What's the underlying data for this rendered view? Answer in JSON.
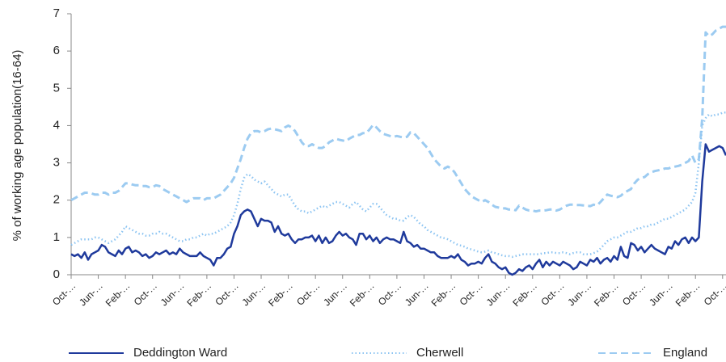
{
  "chart_data": {
    "type": "line",
    "y_label": "% of working age population(16-64)",
    "categories": [
      "Oct-…",
      null,
      null,
      null,
      null,
      null,
      null,
      null,
      "Jun-…",
      null,
      null,
      null,
      null,
      null,
      null,
      null,
      "Feb-…",
      null,
      null,
      null,
      null,
      null,
      null,
      null,
      "Oct-…",
      null,
      null,
      null,
      null,
      null,
      null,
      null,
      "Jun-…",
      null,
      null,
      null,
      null,
      null,
      null,
      null,
      "Feb-…",
      null,
      null,
      null,
      null,
      null,
      null,
      null,
      "Oct-…",
      null,
      null,
      null,
      null,
      null,
      null,
      null,
      "Jun-…",
      null,
      null,
      null,
      null,
      null,
      null,
      null,
      "Feb-…",
      null,
      null,
      null,
      null,
      null,
      null,
      null,
      "Oct-…",
      null,
      null,
      null,
      null,
      null,
      null,
      null,
      "Jun-…",
      null,
      null,
      null,
      null,
      null,
      null,
      null,
      "Feb-…",
      null,
      null,
      null,
      null,
      null,
      null,
      null,
      "Oct-…",
      null,
      null,
      null,
      null,
      null,
      null,
      null,
      "Jun-…",
      null,
      null,
      null,
      null,
      null,
      null,
      null,
      "Feb-…",
      null,
      null,
      null,
      null,
      null,
      null,
      null,
      "Oct-…",
      null,
      null,
      null,
      null,
      null,
      null,
      null,
      "Jun-…",
      null,
      null,
      null,
      null,
      null,
      null,
      null,
      "Feb-…",
      null,
      null,
      null,
      null,
      null,
      null,
      null,
      "Oct-…",
      null,
      null,
      null,
      null,
      null,
      null,
      null,
      "Jun-…",
      null,
      null,
      null,
      null,
      null,
      null,
      null,
      "Feb-…",
      null,
      null,
      null,
      null,
      null,
      null,
      null,
      "Oct-…",
      null,
      null,
      null,
      null,
      null,
      null,
      null,
      "Jun-…",
      null,
      null,
      null,
      null,
      null,
      null,
      null,
      "Feb-…",
      null,
      null,
      null,
      null,
      null,
      null,
      null,
      "Oct-…",
      null
    ],
    "series": [
      {
        "name": "Deddington Ward",
        "color": "#1f3a9c",
        "dash": "solid",
        "values": [
          0.55,
          0.5,
          0.55,
          0.45,
          0.6,
          0.4,
          0.55,
          0.6,
          0.65,
          0.8,
          0.75,
          0.6,
          0.55,
          0.5,
          0.65,
          0.55,
          0.7,
          0.75,
          0.6,
          0.65,
          0.6,
          0.5,
          0.55,
          0.45,
          0.5,
          0.6,
          0.55,
          0.6,
          0.65,
          0.55,
          0.6,
          0.55,
          0.7,
          0.6,
          0.55,
          0.5,
          0.5,
          0.5,
          0.6,
          0.5,
          0.45,
          0.4,
          0.25,
          0.45,
          0.45,
          0.55,
          0.7,
          0.75,
          1.1,
          1.3,
          1.6,
          1.7,
          1.75,
          1.7,
          1.5,
          1.3,
          1.5,
          1.45,
          1.45,
          1.4,
          1.15,
          1.3,
          1.1,
          1.05,
          1.1,
          0.95,
          0.85,
          0.95,
          0.95,
          1.0,
          1.0,
          1.05,
          0.9,
          1.05,
          0.85,
          1.0,
          0.85,
          0.9,
          1.05,
          1.15,
          1.05,
          1.1,
          1.0,
          0.95,
          0.8,
          1.1,
          1.1,
          0.95,
          1.05,
          0.9,
          1.0,
          0.85,
          0.95,
          1.0,
          0.95,
          0.95,
          0.9,
          0.85,
          1.15,
          0.9,
          0.85,
          0.75,
          0.8,
          0.7,
          0.7,
          0.65,
          0.6,
          0.6,
          0.5,
          0.45,
          0.45,
          0.45,
          0.5,
          0.45,
          0.55,
          0.4,
          0.35,
          0.25,
          0.3,
          0.3,
          0.35,
          0.3,
          0.45,
          0.55,
          0.35,
          0.3,
          0.2,
          0.15,
          0.2,
          0.05,
          0.0,
          0.05,
          0.15,
          0.1,
          0.2,
          0.25,
          0.15,
          0.3,
          0.4,
          0.2,
          0.35,
          0.25,
          0.35,
          0.3,
          0.25,
          0.35,
          0.3,
          0.25,
          0.15,
          0.2,
          0.35,
          0.3,
          0.25,
          0.4,
          0.35,
          0.45,
          0.3,
          0.4,
          0.45,
          0.35,
          0.5,
          0.4,
          0.75,
          0.5,
          0.45,
          0.85,
          0.8,
          0.65,
          0.75,
          0.6,
          0.7,
          0.8,
          0.7,
          0.65,
          0.6,
          0.55,
          0.75,
          0.7,
          0.9,
          0.8,
          0.95,
          1.0,
          0.85,
          1.0,
          0.9,
          1.0,
          2.5,
          3.5,
          3.3,
          3.35,
          3.4,
          3.45,
          3.4,
          3.2
        ]
      },
      {
        "name": "Cherwell",
        "color": "#8cc4f2",
        "dash": "dotted",
        "values": [
          0.8,
          0.85,
          0.9,
          0.95,
          0.95,
          0.95,
          0.95,
          1.0,
          1.0,
          0.95,
          0.9,
          0.85,
          0.9,
          0.95,
          1.05,
          1.15,
          1.3,
          1.25,
          1.2,
          1.15,
          1.1,
          1.1,
          1.05,
          1.05,
          1.1,
          1.1,
          1.15,
          1.1,
          1.1,
          1.05,
          1.0,
          0.95,
          0.9,
          0.9,
          0.95,
          0.95,
          1.0,
          1.0,
          1.05,
          1.1,
          1.05,
          1.1,
          1.1,
          1.15,
          1.2,
          1.25,
          1.3,
          1.4,
          1.6,
          1.9,
          2.3,
          2.6,
          2.7,
          2.65,
          2.55,
          2.5,
          2.45,
          2.5,
          2.4,
          2.3,
          2.2,
          2.15,
          2.1,
          2.15,
          2.15,
          2.0,
          1.85,
          1.75,
          1.7,
          1.7,
          1.65,
          1.7,
          1.75,
          1.8,
          1.85,
          1.8,
          1.85,
          1.9,
          1.95,
          1.95,
          1.9,
          1.85,
          1.8,
          1.9,
          1.95,
          1.85,
          1.75,
          1.7,
          1.8,
          1.9,
          1.9,
          1.8,
          1.7,
          1.6,
          1.55,
          1.5,
          1.5,
          1.45,
          1.45,
          1.55,
          1.6,
          1.55,
          1.45,
          1.35,
          1.3,
          1.2,
          1.15,
          1.1,
          1.05,
          1.0,
          0.98,
          0.95,
          0.9,
          0.85,
          0.8,
          0.78,
          0.75,
          0.7,
          0.68,
          0.65,
          0.62,
          0.6,
          0.62,
          0.65,
          0.6,
          0.58,
          0.55,
          0.52,
          0.5,
          0.5,
          0.48,
          0.5,
          0.52,
          0.55,
          0.55,
          0.55,
          0.55,
          0.55,
          0.55,
          0.58,
          0.58,
          0.6,
          0.6,
          0.58,
          0.58,
          0.6,
          0.58,
          0.55,
          0.58,
          0.6,
          0.6,
          0.55,
          0.55,
          0.55,
          0.58,
          0.62,
          0.7,
          0.8,
          0.9,
          0.95,
          1.0,
          1.0,
          1.05,
          1.1,
          1.15,
          1.15,
          1.2,
          1.25,
          1.25,
          1.3,
          1.3,
          1.35,
          1.35,
          1.4,
          1.45,
          1.5,
          1.5,
          1.55,
          1.6,
          1.65,
          1.7,
          1.75,
          1.85,
          1.95,
          2.2,
          3.0,
          4.0,
          4.2,
          4.3,
          4.25,
          4.3,
          4.3,
          4.35,
          4.35
        ]
      },
      {
        "name": "England",
        "color": "#9ccbf1",
        "dash": "dashed",
        "values": [
          2.0,
          2.05,
          2.1,
          2.15,
          2.2,
          2.2,
          2.18,
          2.15,
          2.15,
          2.2,
          2.2,
          2.15,
          2.2,
          2.2,
          2.25,
          2.35,
          2.45,
          2.45,
          2.42,
          2.4,
          2.4,
          2.38,
          2.38,
          2.35,
          2.35,
          2.4,
          2.38,
          2.3,
          2.25,
          2.2,
          2.15,
          2.1,
          2.05,
          2.0,
          1.95,
          2.0,
          2.05,
          2.05,
          2.05,
          2.0,
          2.05,
          2.05,
          2.05,
          2.1,
          2.15,
          2.25,
          2.35,
          2.45,
          2.6,
          2.85,
          3.1,
          3.4,
          3.65,
          3.8,
          3.85,
          3.85,
          3.82,
          3.85,
          3.9,
          3.92,
          3.9,
          3.88,
          3.85,
          3.95,
          4.0,
          3.95,
          3.85,
          3.7,
          3.55,
          3.45,
          3.45,
          3.5,
          3.45,
          3.4,
          3.4,
          3.45,
          3.55,
          3.6,
          3.65,
          3.62,
          3.6,
          3.58,
          3.65,
          3.7,
          3.75,
          3.75,
          3.8,
          3.8,
          3.9,
          4.02,
          3.95,
          3.85,
          3.78,
          3.75,
          3.72,
          3.7,
          3.72,
          3.7,
          3.68,
          3.7,
          3.82,
          3.8,
          3.7,
          3.6,
          3.5,
          3.4,
          3.25,
          3.1,
          3.0,
          2.9,
          2.85,
          2.9,
          2.85,
          2.75,
          2.6,
          2.45,
          2.3,
          2.2,
          2.1,
          2.05,
          2.0,
          1.95,
          2.0,
          1.95,
          1.88,
          1.82,
          1.8,
          1.78,
          1.78,
          1.75,
          1.75,
          1.73,
          1.85,
          1.8,
          1.75,
          1.72,
          1.72,
          1.7,
          1.72,
          1.72,
          1.73,
          1.75,
          1.75,
          1.72,
          1.75,
          1.8,
          1.85,
          1.88,
          1.88,
          1.87,
          1.87,
          1.86,
          1.85,
          1.84,
          1.88,
          1.86,
          1.95,
          2.05,
          2.15,
          2.12,
          2.1,
          2.08,
          2.12,
          2.2,
          2.25,
          2.3,
          2.45,
          2.55,
          2.6,
          2.62,
          2.7,
          2.75,
          2.78,
          2.8,
          2.82,
          2.85,
          2.85,
          2.88,
          2.9,
          2.92,
          2.95,
          3.0,
          3.05,
          3.2,
          3.0,
          3.1,
          4.2,
          6.5,
          6.4,
          6.45,
          6.55,
          6.6,
          6.65,
          6.65
        ]
      }
    ],
    "ylim": [
      0,
      7
    ],
    "yticks": [
      0,
      1,
      2,
      3,
      4,
      5,
      6,
      7
    ],
    "grid": false,
    "legend": "bottom"
  }
}
